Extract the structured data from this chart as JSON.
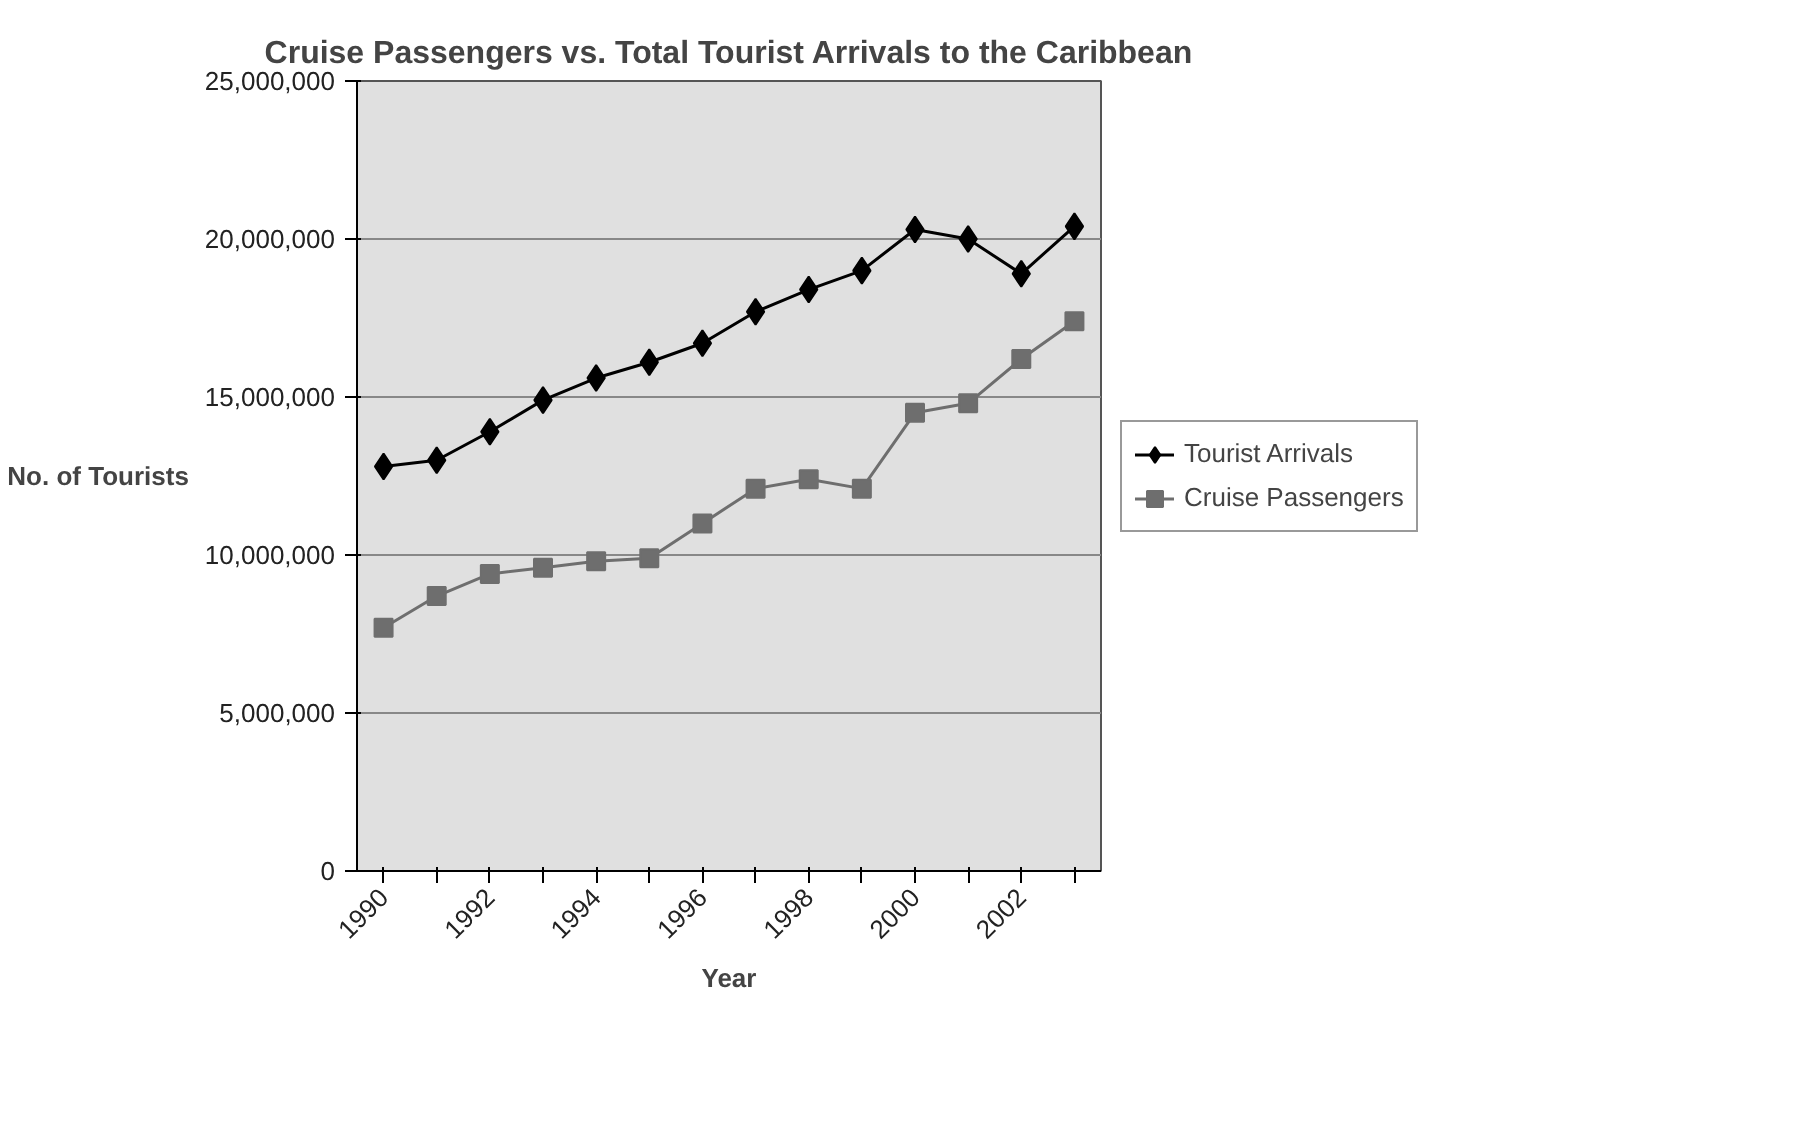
{
  "chart_data": {
    "type": "line",
    "title": "Cruise Passengers vs. Total Tourist Arrivals to the Caribbean",
    "xlabel": "Year",
    "ylabel": "No. of Tourists",
    "categories": [
      "1990",
      null,
      "1992",
      null,
      "1994",
      null,
      "1996",
      null,
      "1998",
      null,
      "2000",
      null,
      "2002",
      null
    ],
    "series": [
      {
        "name": "Tourist Arrivals",
        "color": "#000000",
        "marker": "diamond",
        "values": [
          12800000,
          13000000,
          13900000,
          14900000,
          15600000,
          16100000,
          16700000,
          17700000,
          18400000,
          19000000,
          20300000,
          20000000,
          18900000,
          20400000
        ]
      },
      {
        "name": "Cruise Passengers",
        "color": "#6e6e6e",
        "marker": "square",
        "values": [
          7700000,
          8700000,
          9400000,
          9600000,
          9800000,
          9900000,
          11000000,
          12100000,
          12400000,
          12100000,
          14500000,
          14800000,
          16200000,
          17400000
        ]
      }
    ],
    "ylim": [
      0,
      25000000
    ],
    "yticks": [
      {
        "value": 0,
        "label": "0"
      },
      {
        "value": 5000000,
        "label": "5,000,000"
      },
      {
        "value": 10000000,
        "label": "10,000,000"
      },
      {
        "value": 15000000,
        "label": "15,000,000"
      },
      {
        "value": 20000000,
        "label": "20,000,000"
      },
      {
        "value": 25000000,
        "label": "25,000,000"
      }
    ],
    "grid": "y",
    "legend": "right",
    "line_style": "solid"
  }
}
